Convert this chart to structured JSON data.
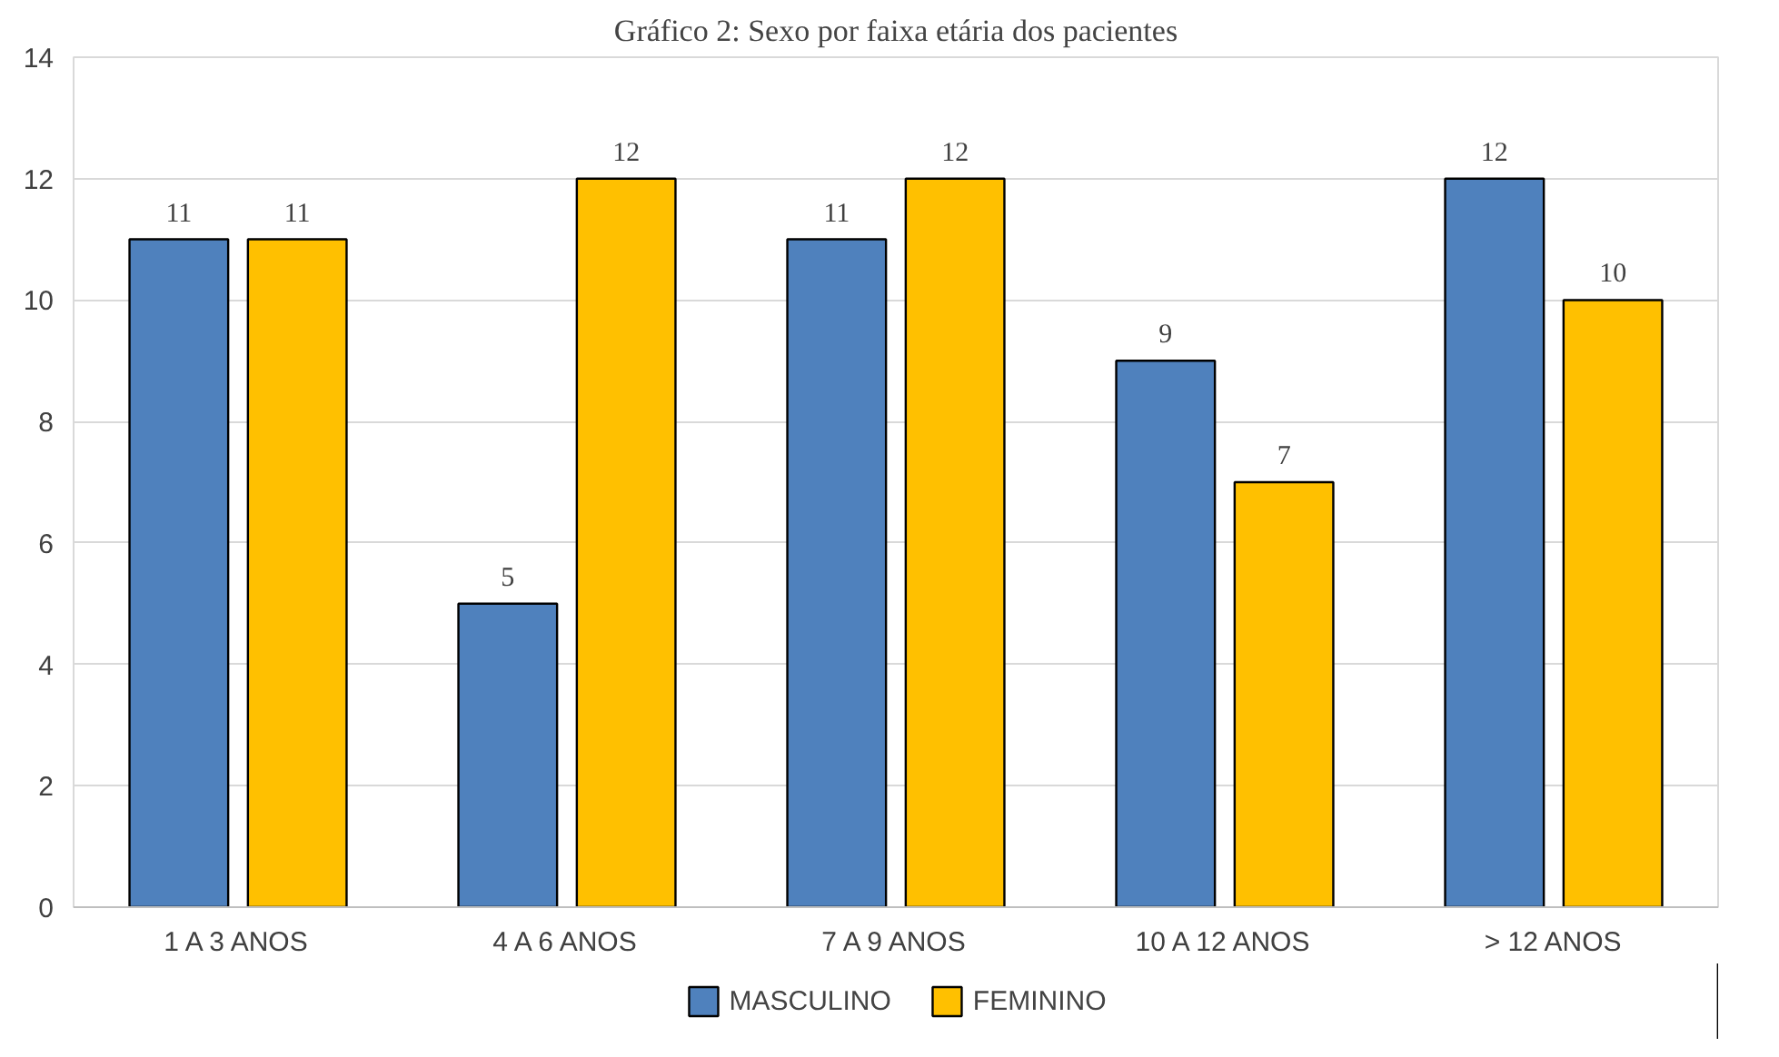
{
  "chart_data": {
    "type": "bar",
    "title": "Gráfico 2: Sexo por faixa etária dos pacientes",
    "categories": [
      "1 A 3 ANOS",
      "4 A 6 ANOS",
      "7 A 9 ANOS",
      "10 A 12 ANOS",
      "> 12 ANOS"
    ],
    "series": [
      {
        "name": "MASCULINO",
        "color": "#4f81bd",
        "values": [
          11,
          5,
          11,
          9,
          12
        ]
      },
      {
        "name": "FEMININO",
        "color": "#ffc000",
        "values": [
          11,
          12,
          12,
          7,
          10
        ]
      }
    ],
    "ylim": [
      0,
      14
    ],
    "yticks": [
      0,
      2,
      4,
      6,
      8,
      10,
      12,
      14
    ],
    "grid": "y",
    "legend": "bottom",
    "data_labels": true
  }
}
